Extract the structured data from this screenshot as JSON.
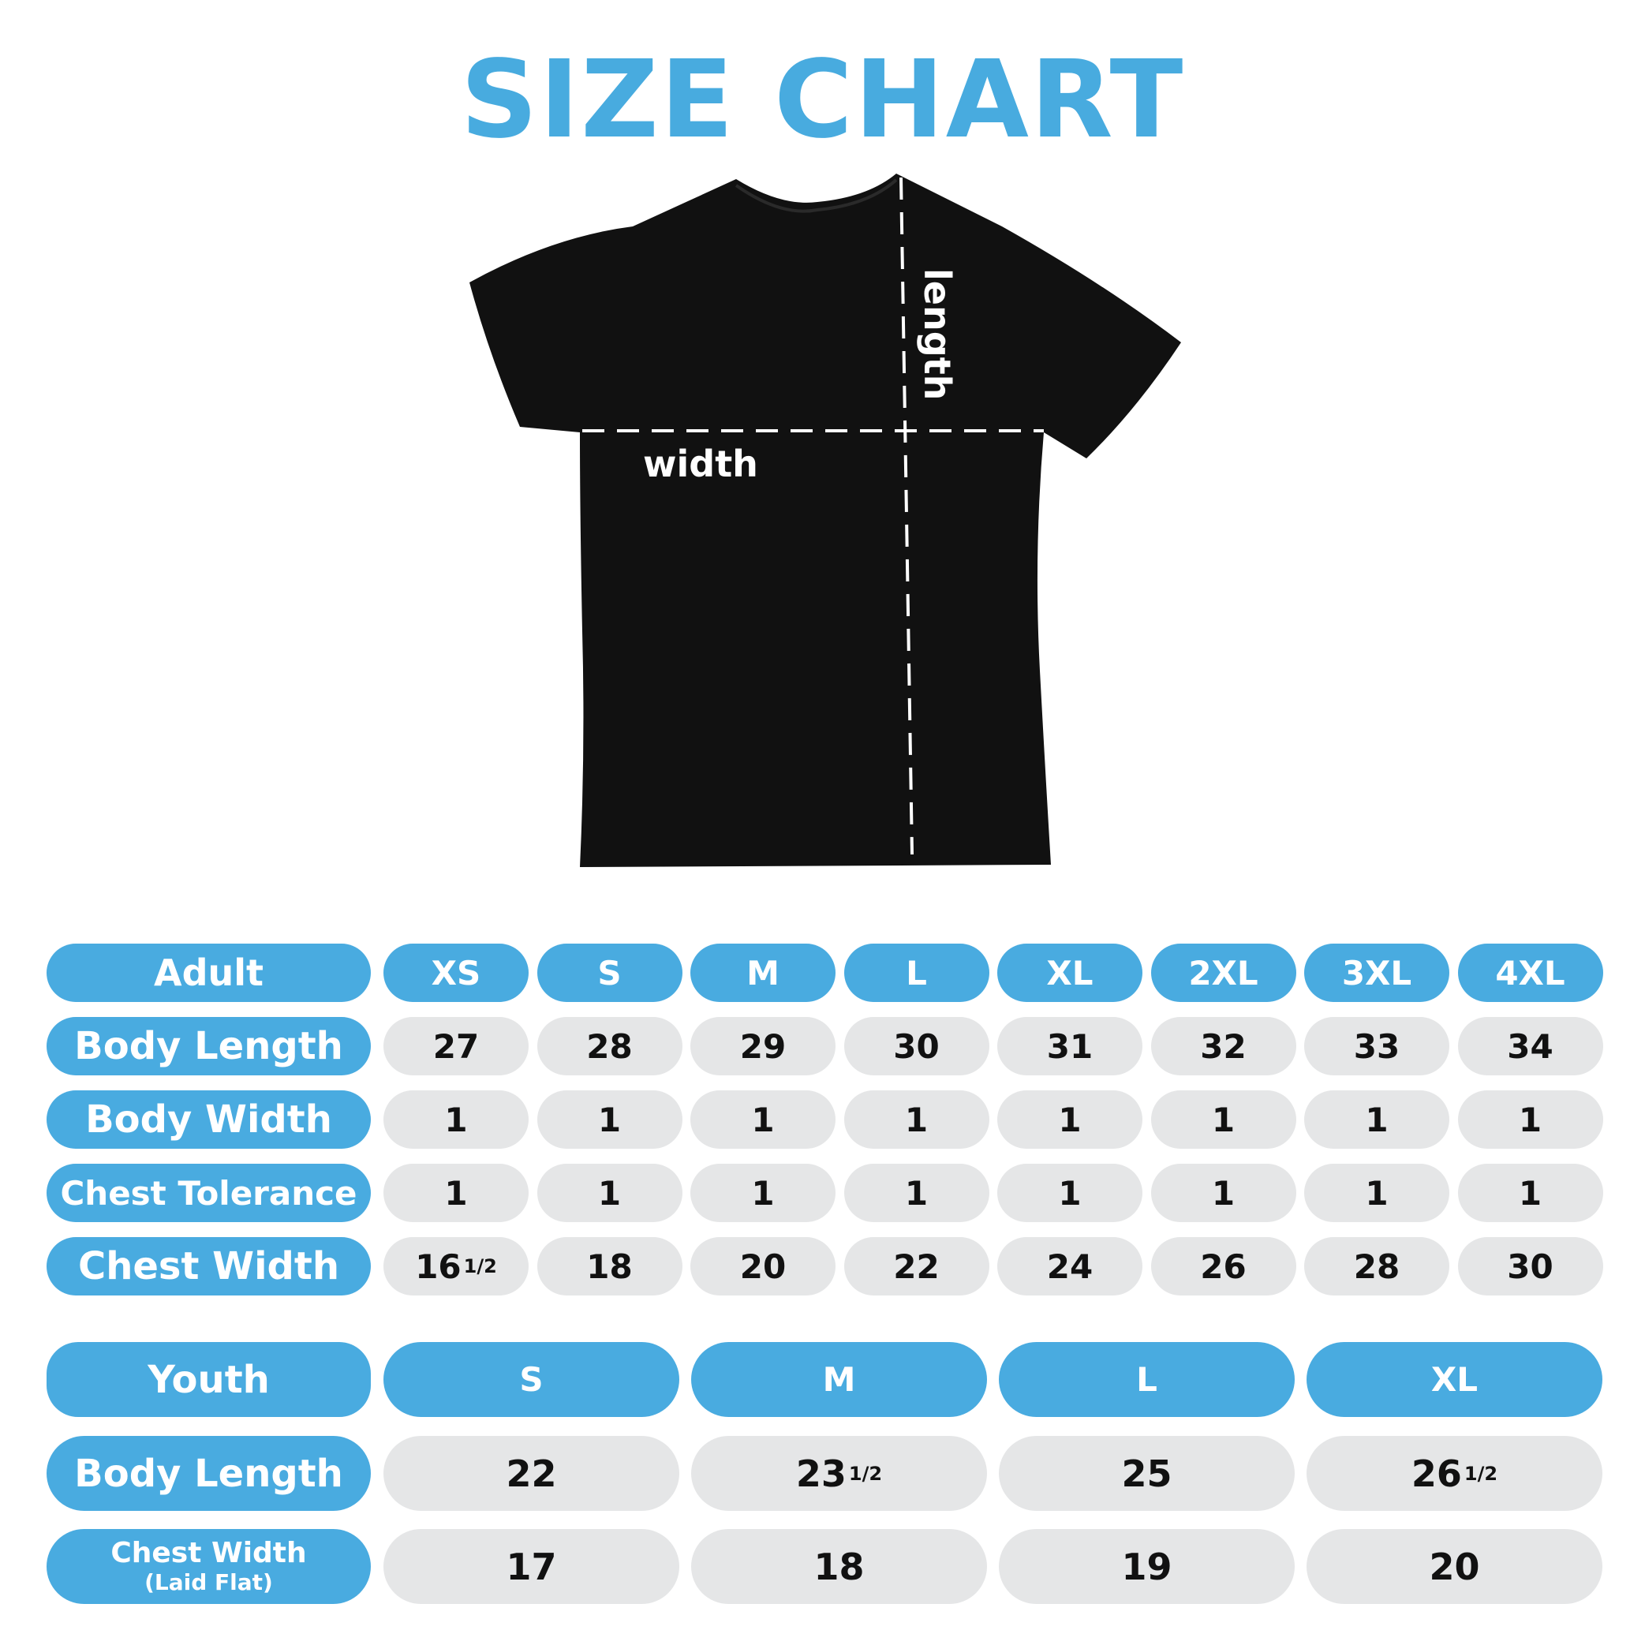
{
  "title": "SIZE CHART",
  "colors": {
    "accent": "#49abe0",
    "cell": "#e5e6e7",
    "shirt": "#111111"
  },
  "diagram": {
    "width_label": "width",
    "length_label": "length"
  },
  "adult": {
    "header": "Adult",
    "sizes": [
      "XS",
      "S",
      "M",
      "L",
      "XL",
      "2XL",
      "3XL",
      "4XL"
    ],
    "rows": [
      {
        "label": "Body Length",
        "values": [
          {
            "whole": "27"
          },
          {
            "whole": "28"
          },
          {
            "whole": "29"
          },
          {
            "whole": "30"
          },
          {
            "whole": "31"
          },
          {
            "whole": "32"
          },
          {
            "whole": "33"
          },
          {
            "whole": "34"
          }
        ]
      },
      {
        "label": "Body Width",
        "values": [
          {
            "whole": "1"
          },
          {
            "whole": "1"
          },
          {
            "whole": "1"
          },
          {
            "whole": "1"
          },
          {
            "whole": "1"
          },
          {
            "whole": "1"
          },
          {
            "whole": "1"
          },
          {
            "whole": "1"
          }
        ]
      },
      {
        "label": "Chest Tolerance",
        "values": [
          {
            "whole": "1"
          },
          {
            "whole": "1"
          },
          {
            "whole": "1"
          },
          {
            "whole": "1"
          },
          {
            "whole": "1"
          },
          {
            "whole": "1"
          },
          {
            "whole": "1"
          },
          {
            "whole": "1"
          }
        ]
      },
      {
        "label": "Chest Width",
        "values": [
          {
            "whole": "16",
            "frac": "1/2"
          },
          {
            "whole": "18"
          },
          {
            "whole": "20"
          },
          {
            "whole": "22"
          },
          {
            "whole": "24"
          },
          {
            "whole": "26"
          },
          {
            "whole": "28"
          },
          {
            "whole": "30"
          }
        ]
      }
    ]
  },
  "youth": {
    "header": "Youth",
    "sizes": [
      "S",
      "M",
      "L",
      "XL"
    ],
    "rows": [
      {
        "label": "Body Length",
        "values": [
          {
            "whole": "22"
          },
          {
            "whole": "23",
            "frac": "1/2"
          },
          {
            "whole": "25"
          },
          {
            "whole": "26",
            "frac": "1/2"
          }
        ]
      },
      {
        "label": "Chest Width",
        "sublabel": "(Laid Flat)",
        "values": [
          {
            "whole": "17"
          },
          {
            "whole": "18"
          },
          {
            "whole": "19"
          },
          {
            "whole": "20"
          }
        ]
      }
    ]
  }
}
